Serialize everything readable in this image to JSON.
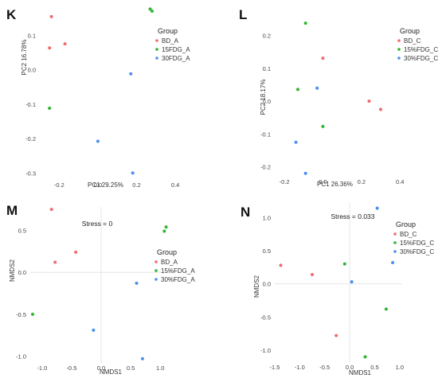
{
  "colors": {
    "BD": "#f26b6b",
    "FDG15": "#2fb52f",
    "FDG30": "#4c8ff0"
  },
  "chart_data": [
    {
      "panel": "K",
      "type": "scatter",
      "xlabel": "PC1 29.25%",
      "ylabel": "PC2 16.78%",
      "xlim": [
        -0.3,
        0.42
      ],
      "ylim": [
        -0.32,
        0.17
      ],
      "xticks": [
        -0.2,
        0.0,
        0.2,
        0.4
      ],
      "xtick_labels": [
        "-0.2",
        "0.0",
        "0.2",
        "0.4"
      ],
      "yticks": [
        0.1,
        0.0,
        -0.1,
        -0.2,
        -0.3
      ],
      "ytick_labels": [
        "0.1",
        "0.0",
        "-0.1",
        "-0.2",
        "-0.3"
      ],
      "show_zero_x": false,
      "show_zero_y": false,
      "legend": {
        "title": "Group",
        "items": [
          "BD_A",
          "15FDG_A",
          "30FDG_A"
        ]
      },
      "series": [
        {
          "name": "BD_A",
          "color_key": "BD",
          "points": [
            [
              -0.24,
              0.154
            ],
            [
              -0.25,
              0.063
            ],
            [
              -0.17,
              0.075
            ]
          ]
        },
        {
          "name": "15FDG_A",
          "color_key": "FDG15",
          "points": [
            [
              -0.25,
              -0.112
            ],
            [
              0.27,
              0.176
            ],
            [
              0.28,
              0.17
            ]
          ]
        },
        {
          "name": "30FDG_A",
          "color_key": "FDG30",
          "points": [
            [
              0.17,
              -0.012
            ],
            [
              0.0,
              -0.208
            ],
            [
              0.18,
              -0.3
            ]
          ]
        }
      ],
      "stress": ""
    },
    {
      "panel": "L",
      "type": "scatter",
      "xlabel": "PC1 26.36%",
      "ylabel": "PC2 18.17%",
      "xlim": [
        -0.25,
        0.42
      ],
      "ylim": [
        -0.23,
        0.26
      ],
      "xticks": [
        -0.2,
        0.0,
        0.2,
        0.4
      ],
      "xtick_labels": [
        "-0.2",
        "0.0",
        "0.2",
        "0.4"
      ],
      "yticks": [
        0.2,
        0.1,
        0.0,
        -0.1,
        -0.2
      ],
      "ytick_labels": [
        "0.2",
        "0.1",
        "0.0",
        "-0.1",
        "-0.2"
      ],
      "show_zero_x": false,
      "show_zero_y": false,
      "legend": {
        "title": "Group",
        "items": [
          "BD_C",
          "15%FDG_C",
          "30%FDG_C"
        ]
      },
      "series": [
        {
          "name": "BD_C",
          "color_key": "BD",
          "points": [
            [
              0.0,
              0.131
            ],
            [
              0.24,
              0.0
            ],
            [
              0.3,
              -0.025
            ]
          ]
        },
        {
          "name": "15%FDG_C",
          "color_key": "FDG15",
          "points": [
            [
              -0.09,
              0.238
            ],
            [
              -0.13,
              0.036
            ],
            [
              0.0,
              -0.077
            ]
          ]
        },
        {
          "name": "30%FDG_C",
          "color_key": "FDG30",
          "points": [
            [
              -0.03,
              0.04
            ],
            [
              -0.14,
              -0.125
            ],
            [
              -0.09,
              -0.22
            ]
          ]
        }
      ],
      "stress": ""
    },
    {
      "panel": "M",
      "type": "scatter",
      "xlabel": "NMDS1",
      "ylabel": "NMDS2",
      "xlim": [
        -1.2,
        1.2
      ],
      "ylim": [
        -1.08,
        0.78
      ],
      "xticks": [
        -1.0,
        -0.5,
        0.0,
        0.5,
        1.0
      ],
      "xtick_labels": [
        "-1.0",
        "-0.5",
        "0.0",
        "0.5",
        "1.0"
      ],
      "yticks": [
        0.5,
        0.0,
        -0.5,
        -1.0
      ],
      "ytick_labels": [
        "0.5",
        "0.0",
        "-0.5",
        "-1.0"
      ],
      "show_zero_x": true,
      "show_zero_y": true,
      "legend": {
        "title": "Group",
        "items": [
          "BD_A",
          "15%FDG_A",
          "30%FDG_A"
        ]
      },
      "series": [
        {
          "name": "BD_A",
          "color_key": "BD",
          "points": [
            [
              -0.84,
              0.75
            ],
            [
              -0.78,
              0.12
            ],
            [
              -0.43,
              0.24
            ]
          ]
        },
        {
          "name": "15%FDG_A",
          "color_key": "FDG15",
          "points": [
            [
              -1.16,
              -0.5
            ],
            [
              1.07,
              0.49
            ],
            [
              1.1,
              0.54
            ]
          ]
        },
        {
          "name": "30%FDG_A",
          "color_key": "FDG30",
          "points": [
            [
              0.6,
              -0.13
            ],
            [
              -0.13,
              -0.69
            ],
            [
              0.7,
              -1.03
            ]
          ]
        }
      ],
      "stress": "Stress = 0"
    },
    {
      "panel": "N",
      "type": "scatter",
      "xlabel": "NMDS1",
      "ylabel": "NMDS2",
      "xlim": [
        -1.5,
        1.05
      ],
      "ylim": [
        -1.18,
        1.22
      ],
      "xticks": [
        -1.5,
        -1.0,
        -0.5,
        0.0,
        0.5,
        1.0
      ],
      "xtick_labels": [
        "-1.5",
        "-1.0",
        "-0.5",
        "0.0",
        "0.5",
        "1.0"
      ],
      "yticks": [
        1.0,
        0.5,
        0.0,
        -0.5,
        -1.0
      ],
      "ytick_labels": [
        "1.0",
        "0.5",
        "0.0",
        "-0.5",
        "-1.0"
      ],
      "show_zero_x": true,
      "show_zero_y": true,
      "legend": {
        "title": "Group",
        "items": [
          "BD_C",
          "15%FDG_C",
          "30%FDG_C"
        ]
      },
      "series": [
        {
          "name": "BD_C",
          "color_key": "BD",
          "points": [
            [
              -1.38,
              0.28
            ],
            [
              -0.75,
              0.14
            ],
            [
              -0.27,
              -0.78
            ]
          ]
        },
        {
          "name": "15%FDG_C",
          "color_key": "FDG15",
          "points": [
            [
              -0.1,
              0.3
            ],
            [
              0.73,
              -0.38
            ],
            [
              0.31,
              -1.1
            ]
          ]
        },
        {
          "name": "30%FDG_C",
          "color_key": "FDG30",
          "points": [
            [
              0.55,
              1.14
            ],
            [
              0.04,
              0.03
            ],
            [
              0.86,
              0.32
            ]
          ]
        }
      ],
      "stress": "Stress = 0.033"
    }
  ]
}
